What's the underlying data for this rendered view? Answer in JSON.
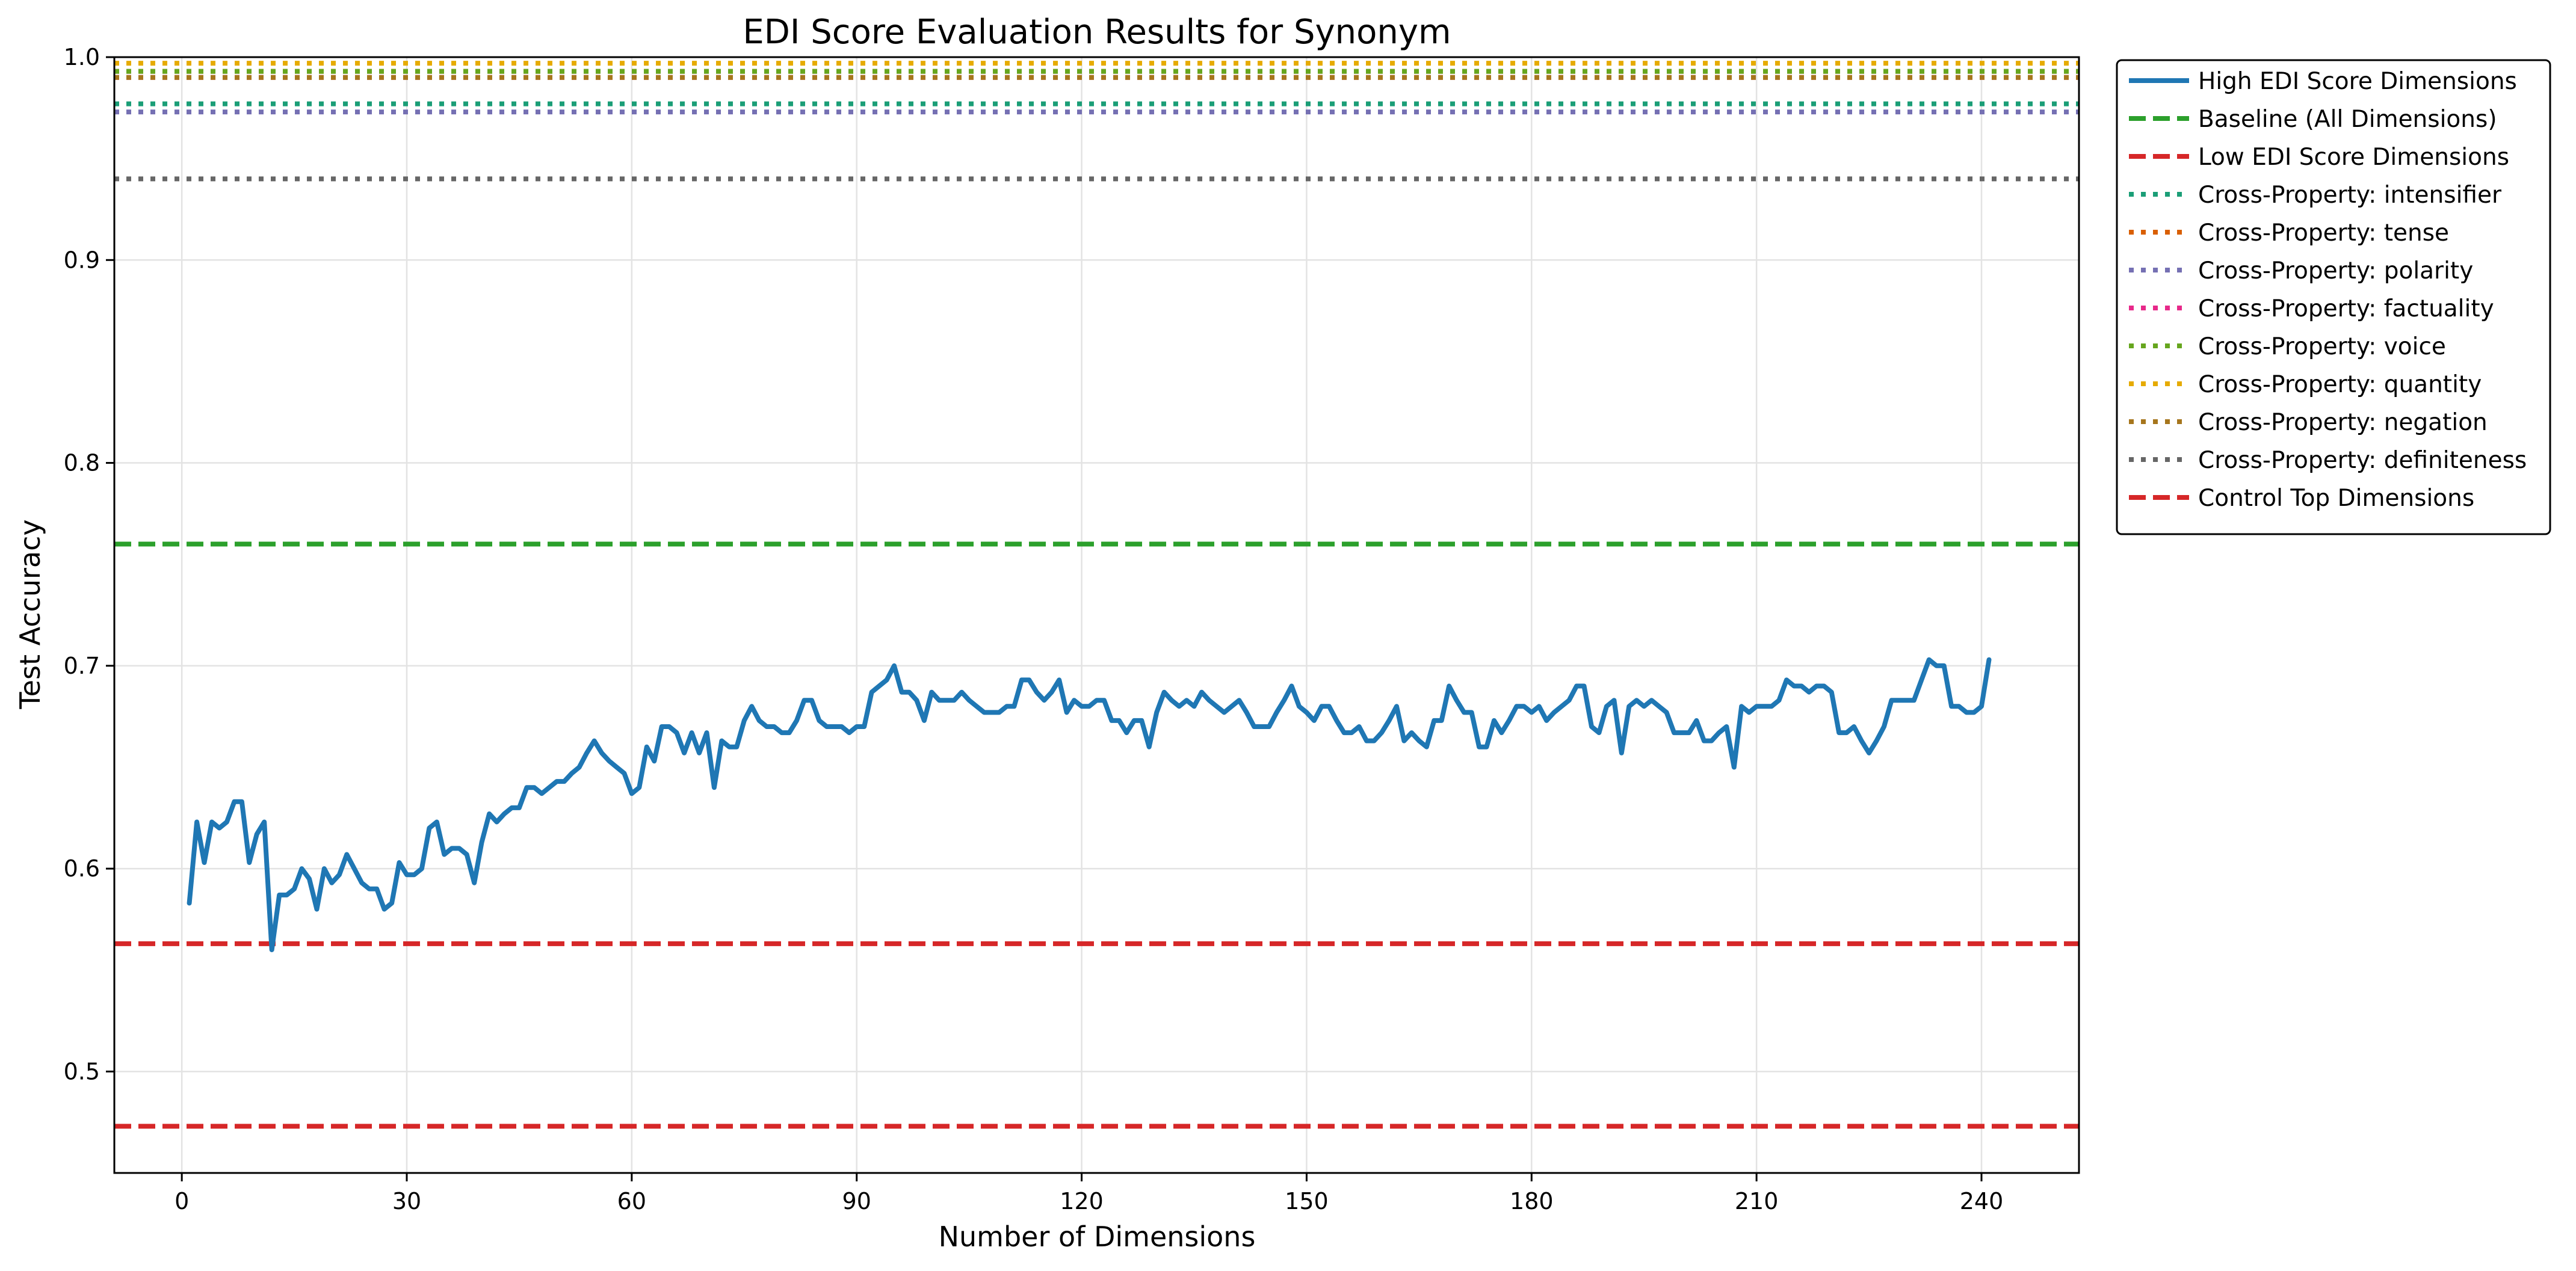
{
  "chart_data": {
    "type": "line",
    "title": "EDI Score Evaluation Results for Synonym",
    "xlabel": "Number of Dimensions",
    "ylabel": "Test Accuracy",
    "xlim": [
      -9,
      253
    ],
    "ylim": [
      0.45,
      1.0
    ],
    "xticks": [
      0,
      30,
      60,
      90,
      120,
      150,
      180,
      210,
      240
    ],
    "yticks": [
      0.5,
      0.6,
      0.7,
      0.8,
      0.9,
      1.0
    ],
    "xtick_labels": [
      "0",
      "30",
      "60",
      "90",
      "120",
      "150",
      "180",
      "210",
      "240"
    ],
    "ytick_labels": [
      "0.5",
      "0.6",
      "0.7",
      "0.8",
      "0.9",
      "1.0"
    ],
    "grid": true,
    "legend_position": "outside-top-right",
    "series": [
      {
        "name": "High EDI Score Dimensions",
        "style": "solid",
        "color": "#1f77b4",
        "x": [
          1,
          2,
          3,
          4,
          5,
          6,
          7,
          8,
          9,
          10,
          11,
          12,
          13,
          14,
          15,
          16,
          17,
          18,
          19,
          20,
          21,
          22,
          23,
          24,
          25,
          26,
          27,
          28,
          29,
          30,
          31,
          32,
          33,
          34,
          35,
          36,
          37,
          38,
          39,
          40,
          41,
          42,
          43,
          44,
          45,
          46,
          47,
          48,
          49,
          50,
          51,
          52,
          53,
          54,
          55,
          56,
          57,
          58,
          59,
          60,
          61,
          62,
          63,
          64,
          65,
          66,
          67,
          68,
          69,
          70,
          71,
          72,
          73,
          74,
          75,
          76,
          77,
          78,
          79,
          80,
          81,
          82,
          83,
          84,
          85,
          86,
          87,
          88,
          89,
          90,
          91,
          92,
          93,
          94,
          95,
          96,
          97,
          98,
          99,
          100,
          101,
          102,
          103,
          104,
          105,
          106,
          107,
          108,
          109,
          110,
          111,
          112,
          113,
          114,
          115,
          116,
          117,
          118,
          119,
          120,
          121,
          122,
          123,
          124,
          125,
          126,
          127,
          128,
          129,
          130,
          131,
          132,
          133,
          134,
          135,
          136,
          137,
          138,
          139,
          140,
          141,
          142,
          143,
          144,
          145,
          146,
          147,
          148,
          149,
          150,
          151,
          152,
          153,
          154,
          155,
          156,
          157,
          158,
          159,
          160,
          161,
          162,
          163,
          164,
          165,
          166,
          167,
          168,
          169,
          170,
          171,
          172,
          173,
          174,
          175,
          176,
          177,
          178,
          179,
          180,
          181,
          182,
          183,
          184,
          185,
          186,
          187,
          188,
          189,
          190,
          191,
          192,
          193,
          194,
          195,
          196,
          197,
          198,
          199,
          200,
          201,
          202,
          203,
          204,
          205,
          206,
          207,
          208,
          209,
          210,
          211,
          212,
          213,
          214,
          215,
          216,
          217,
          218,
          219,
          220,
          221,
          222,
          223,
          224,
          225,
          226,
          227,
          228,
          229,
          230,
          231,
          232,
          233,
          234,
          235,
          236,
          237,
          238,
          239,
          240,
          241
        ],
        "y": [
          0.583,
          0.623,
          0.603,
          0.623,
          0.62,
          0.623,
          0.633,
          0.633,
          0.603,
          0.617,
          0.623,
          0.56,
          0.587,
          0.587,
          0.59,
          0.6,
          0.595,
          0.58,
          0.6,
          0.593,
          0.597,
          0.607,
          0.6,
          0.593,
          0.59,
          0.59,
          0.58,
          0.583,
          0.603,
          0.597,
          0.597,
          0.6,
          0.62,
          0.623,
          0.607,
          0.61,
          0.61,
          0.607,
          0.593,
          0.613,
          0.627,
          0.623,
          0.627,
          0.63,
          0.63,
          0.64,
          0.64,
          0.637,
          0.64,
          0.643,
          0.643,
          0.647,
          0.65,
          0.657,
          0.663,
          0.657,
          0.653,
          0.65,
          0.647,
          0.637,
          0.64,
          0.66,
          0.653,
          0.67,
          0.67,
          0.667,
          0.657,
          0.667,
          0.657,
          0.667,
          0.64,
          0.663,
          0.66,
          0.66,
          0.673,
          0.68,
          0.673,
          0.67,
          0.67,
          0.667,
          0.667,
          0.673,
          0.683,
          0.683,
          0.673,
          0.67,
          0.67,
          0.67,
          0.667,
          0.67,
          0.67,
          0.687,
          0.69,
          0.693,
          0.7,
          0.687,
          0.687,
          0.683,
          0.673,
          0.687,
          0.683,
          0.683,
          0.683,
          0.687,
          0.683,
          0.68,
          0.677,
          0.677,
          0.677,
          0.68,
          0.68,
          0.693,
          0.693,
          0.687,
          0.683,
          0.687,
          0.693,
          0.677,
          0.683,
          0.68,
          0.68,
          0.683,
          0.683,
          0.673,
          0.673,
          0.667,
          0.673,
          0.673,
          0.66,
          0.677,
          0.687,
          0.683,
          0.68,
          0.683,
          0.68,
          0.687,
          0.683,
          0.68,
          0.677,
          0.68,
          0.683,
          0.677,
          0.67,
          0.67,
          0.67,
          0.677,
          0.683,
          0.69,
          0.68,
          0.677,
          0.673,
          0.68,
          0.68,
          0.673,
          0.667,
          0.667,
          0.67,
          0.663,
          0.663,
          0.667,
          0.673,
          0.68,
          0.663,
          0.667,
          0.663,
          0.66,
          0.673,
          0.673,
          0.69,
          0.683,
          0.677,
          0.677,
          0.66,
          0.66,
          0.673,
          0.667,
          0.673,
          0.68,
          0.68,
          0.677,
          0.68,
          0.673,
          0.677,
          0.68,
          0.683,
          0.69,
          0.69,
          0.67,
          0.667,
          0.68,
          0.683,
          0.657,
          0.68,
          0.683,
          0.68,
          0.683,
          0.68,
          0.677,
          0.667,
          0.667,
          0.667,
          0.673,
          0.663,
          0.663,
          0.667,
          0.67,
          0.65,
          0.68,
          0.677,
          0.68,
          0.68,
          0.68,
          0.683,
          0.693,
          0.69,
          0.69,
          0.687,
          0.69,
          0.69,
          0.687,
          0.667,
          0.667,
          0.67,
          0.663,
          0.657,
          0.663,
          0.67,
          0.683,
          0.683,
          0.683,
          0.683,
          0.693,
          0.703,
          0.7,
          0.7,
          0.68,
          0.68,
          0.677,
          0.677,
          0.68,
          0.703
        ]
      },
      {
        "name": "Baseline (All Dimensions)",
        "style": "dashed",
        "color": "#2ca02c",
        "y": 0.76
      },
      {
        "name": "Low EDI Score Dimensions",
        "style": "dashed",
        "color": "#d62728",
        "y": 0.473
      },
      {
        "name": "Cross-Property: intensifier",
        "style": "dotted",
        "color": "#1b9e77",
        "y": 0.977
      },
      {
        "name": "Cross-Property: tense",
        "style": "dotted",
        "color": "#d95f02",
        "y": 0.993
      },
      {
        "name": "Cross-Property: polarity",
        "style": "dotted",
        "color": "#7570b3",
        "y": 0.973
      },
      {
        "name": "Cross-Property: factuality",
        "style": "dotted",
        "color": "#e7298a",
        "y": 0.99
      },
      {
        "name": "Cross-Property: voice",
        "style": "dotted",
        "color": "#66a61e",
        "y": 0.993
      },
      {
        "name": "Cross-Property: quantity",
        "style": "dotted",
        "color": "#e6ab02",
        "y": 0.997
      },
      {
        "name": "Cross-Property: negation",
        "style": "dotted",
        "color": "#a6761d",
        "y": 0.99
      },
      {
        "name": "Cross-Property: definiteness",
        "style": "dotted",
        "color": "#666666",
        "y": 0.94
      },
      {
        "name": "Control Top Dimensions",
        "style": "dashed",
        "color": "#d62728",
        "y": 0.563
      }
    ]
  }
}
